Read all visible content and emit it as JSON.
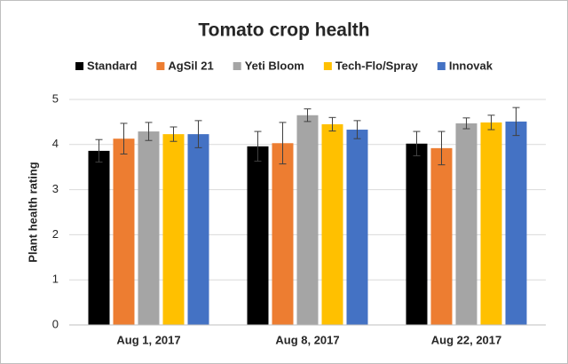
{
  "chart_data": {
    "type": "bar",
    "title": "Tomato crop health",
    "y_label": "Plant health rating",
    "categories": [
      "Aug 1, 2017",
      "Aug 8, 2017",
      "Aug 22, 2017"
    ],
    "series": [
      {
        "name": "Standard",
        "color": "#000000",
        "values": [
          3.86,
          3.96,
          4.02
        ],
        "errors": [
          0.25,
          0.33,
          0.27
        ]
      },
      {
        "name": "AgSil 21",
        "color": "#ed7d31",
        "values": [
          4.13,
          4.03,
          3.92
        ],
        "errors": [
          0.34,
          0.46,
          0.37
        ]
      },
      {
        "name": "Yeti Bloom",
        "color": "#a5a5a5",
        "values": [
          4.29,
          4.65,
          4.47
        ],
        "errors": [
          0.2,
          0.14,
          0.12
        ]
      },
      {
        "name": "Tech-Flo/Spray",
        "color": "#ffc000",
        "values": [
          4.23,
          4.45,
          4.49
        ],
        "errors": [
          0.16,
          0.15,
          0.16
        ]
      },
      {
        "name": "Innovak",
        "color": "#4472c4",
        "values": [
          4.23,
          4.33,
          4.51
        ],
        "errors": [
          0.3,
          0.2,
          0.31
        ]
      }
    ],
    "ylim": [
      0,
      5
    ],
    "yticks": [
      0,
      1,
      2,
      3,
      4,
      5
    ],
    "grid": true
  }
}
